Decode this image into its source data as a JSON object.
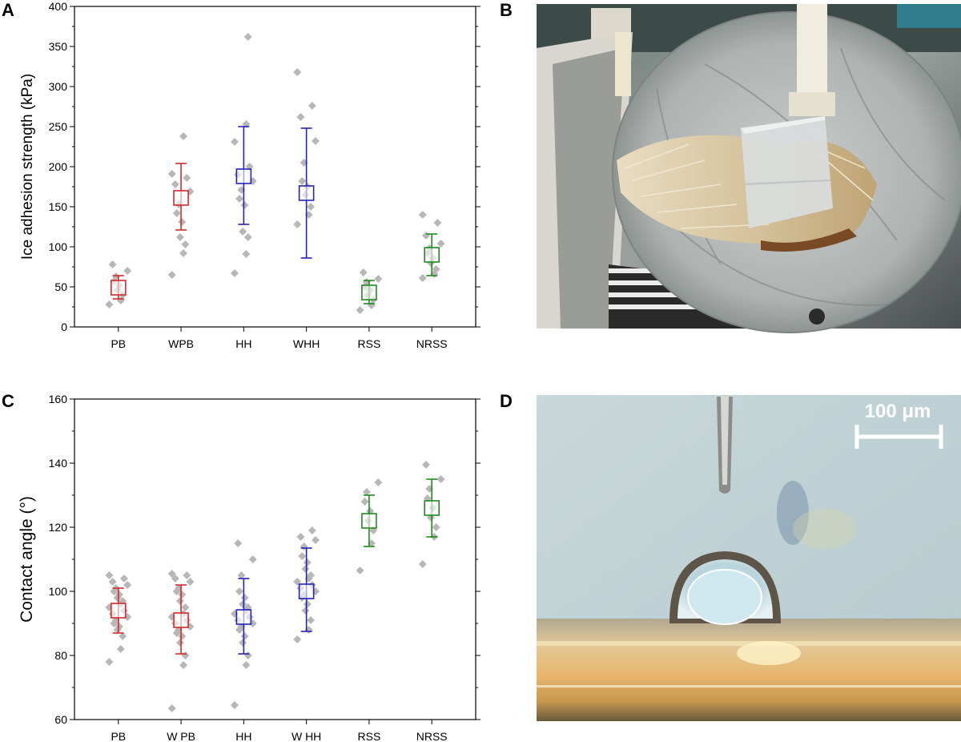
{
  "panels": {
    "a_label": "A",
    "b_label": "B",
    "c_label": "C",
    "d_label": "D"
  },
  "scale_bar": {
    "label": "100 μm"
  },
  "colors": {
    "red": "#d42a2a",
    "blue": "#2323b8",
    "green": "#1f8a1f",
    "points": "#b7b7b7"
  },
  "photos": {
    "b_description_icon": "ice-cube-on-fur-photo",
    "d_description_icon": "water-droplet-on-hair-photo"
  },
  "chart_data": [
    {
      "type": "scatter",
      "panel": "A",
      "title": "",
      "xlabel": "",
      "ylabel": "Ice adhesion strength (kPa)",
      "ylim": [
        0,
        400
      ],
      "yticks": [
        0,
        50,
        100,
        150,
        200,
        250,
        300,
        350,
        400
      ],
      "categories": [
        "PB",
        "WPB",
        "HH",
        "WHH",
        "RSS",
        "NRSS"
      ],
      "category_colors": [
        "red",
        "red",
        "blue",
        "blue",
        "green",
        "green"
      ],
      "series": [
        {
          "mean": [
            49,
            161,
            188,
            167,
            43,
            90
          ],
          "err_low": [
            35,
            121,
            128,
            86,
            29,
            64
          ],
          "err_high": [
            64,
            204,
            250,
            248,
            58,
            116
          ],
          "points": [
            [
              28,
              33,
              40,
              46,
              52,
              57,
              63,
              70,
              78
            ],
            [
              65,
              92,
              103,
              112,
              131,
              142,
              153,
              169,
              178,
              186,
              191,
              238
            ],
            [
              67,
              91,
              112,
              119,
              152,
              160,
              171,
              182,
              190,
              200,
              231,
              253,
              362
            ],
            [
              128,
              140,
              150,
              165,
              175,
              182,
              205,
              232,
              262,
              276,
              318
            ],
            [
              21,
              27,
              34,
              40,
              46,
              50,
              56,
              60,
              68
            ],
            [
              61,
              66,
              72,
              80,
              86,
              92,
              98,
              104,
              114,
              130,
              140
            ]
          ]
        }
      ],
      "grid": false,
      "legend": "none"
    },
    {
      "type": "scatter",
      "panel": "C",
      "title": "",
      "xlabel": "",
      "ylabel": "Contact angle (°)",
      "ylim": [
        60,
        160
      ],
      "yticks": [
        60,
        80,
        100,
        120,
        140,
        160
      ],
      "categories": [
        "PB",
        "W PB",
        "HH",
        "W HH",
        "RSS",
        "NRSS"
      ],
      "category_colors": [
        "red",
        "red",
        "blue",
        "blue",
        "green",
        "green"
      ],
      "series": [
        {
          "mean": [
            94,
            91,
            92,
            100,
            122,
            126
          ],
          "err_low": [
            87,
            80.5,
            80.5,
            87.5,
            114,
            117
          ],
          "err_high": [
            101,
            102,
            104,
            113.5,
            130,
            135
          ],
          "points": [
            [
              78,
              82,
              86,
              88,
              89,
              90,
              91,
              92,
              93,
              94,
              95,
              96,
              97,
              98,
              99,
              100,
              101,
              102,
              103,
              104,
              105
            ],
            [
              63.5,
              77,
              80,
              84,
              86,
              87,
              88,
              89,
              90,
              91,
              92,
              93,
              95,
              97,
              99,
              100,
              101,
              103,
              104,
              105,
              105.5
            ],
            [
              64.5,
              77,
              80,
              84,
              86,
              88,
              89,
              90,
              91,
              92,
              93,
              94,
              95,
              96,
              98,
              100,
              105,
              110,
              115
            ],
            [
              85,
              88,
              91,
              94,
              96,
              98,
              99,
              100,
              101,
              102,
              103,
              104,
              105,
              107,
              109,
              111,
              114,
              116,
              117,
              119
            ],
            [
              106.5,
              115,
              119,
              122,
              125,
              128,
              131,
              134
            ],
            [
              108.5,
              117,
              120,
              123,
              126,
              129,
              132,
              135,
              139.5
            ]
          ]
        }
      ],
      "grid": false,
      "legend": "none"
    }
  ]
}
